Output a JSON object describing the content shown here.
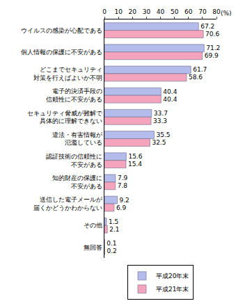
{
  "chart_data": {
    "type": "bar",
    "orientation": "horizontal",
    "x_label": "(%)",
    "categories": [
      "ウイルスの感染が心配である",
      "個人情報の保護に不安がある",
      "どこまでセキュリティ\n対策を行えばよいか不明",
      "電子的決済手段の\n信頼性に不安がある",
      "セキュリティ脅威が難解で\n具体的に理解できない",
      "違法・有害情報が\n氾濫している",
      "認証技術の信頼性に\n不安がある",
      "知的財産の保護に\n不安がある",
      "送信した電子メールが\n届くかどうかわからない",
      "その他",
      "無回答"
    ],
    "series": [
      {
        "name": "平成20年末",
        "color": "#b4bcec",
        "values": [
          67.2,
          71.2,
          61.7,
          40.4,
          33.7,
          35.5,
          15.6,
          7.9,
          9.2,
          1.5,
          0.1
        ]
      },
      {
        "name": "平成21年末",
        "color": "#f4a4bc",
        "values": [
          70.6,
          69.9,
          58.6,
          40.4,
          33.3,
          32.5,
          15.4,
          7.8,
          6.9,
          2.1,
          0.2
        ]
      }
    ],
    "xlim": [
      0,
      80
    ],
    "xticks": [
      0,
      10,
      20,
      30,
      40,
      50,
      60,
      70,
      80
    ],
    "grid": false,
    "data_labels": true,
    "legend": "bottom"
  }
}
